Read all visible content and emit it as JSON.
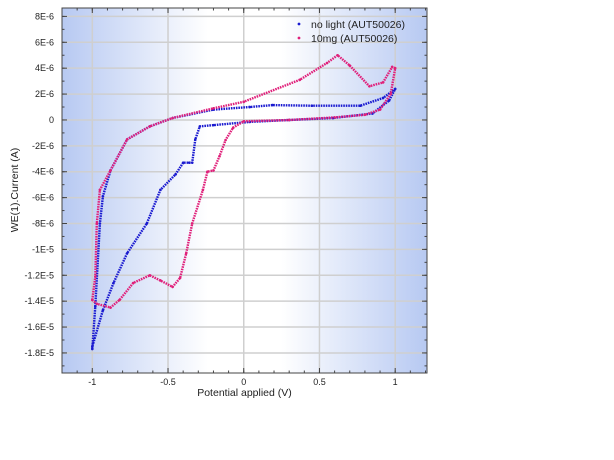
{
  "chart_data": {
    "type": "scatter",
    "title": "",
    "xlabel": "Potential applied (V)",
    "ylabel": "WE(1).Current (A)",
    "xlim": [
      -1.2,
      1.21
    ],
    "ylim": [
      -1.955e-05,
      8.65e-06
    ],
    "xticks": [
      -1,
      -0.5,
      0,
      0.5,
      1
    ],
    "xtick_labels": [
      "-1",
      "-0.5",
      "0",
      "0.5",
      "1"
    ],
    "yticks": [
      8e-06,
      6e-06,
      4e-06,
      2e-06,
      0,
      -2e-06,
      -4e-06,
      -6e-06,
      -8e-06,
      -1e-05,
      -1.2e-05,
      -1.4e-05,
      -1.6e-05,
      -1.8e-05
    ],
    "ytick_labels": [
      "8E-6",
      "6E-6",
      "4E-6",
      "2E-6",
      "0",
      "-2E-6",
      "-4E-6",
      "-6E-6",
      "-8E-6",
      "-1E-5",
      "-1.2E-5",
      "-1.4E-5",
      "-1.6E-5",
      "-1.8E-5"
    ],
    "grid": true,
    "legend_position": "top-right",
    "background": "blue-white horizontal gradient",
    "series": [
      {
        "name": "no light (AUT50026)",
        "color": "#1a1ad0",
        "x": [
          -1.0,
          -0.98,
          -0.95,
          -0.93,
          -0.88,
          -0.77,
          -0.62,
          -0.47,
          -0.2,
          0.04,
          0.19,
          0.45,
          0.77,
          0.92,
          1.0,
          0.96,
          0.85,
          0.59,
          0.3,
          0.04,
          -0.2,
          -0.29,
          -0.32,
          -0.34,
          -0.36,
          -0.4,
          -0.45,
          -0.55,
          -0.64,
          -0.77,
          -0.86,
          -0.93,
          -1.0
        ],
        "y": [
          -1.77e-05,
          -1.44e-05,
          -8e-06,
          -5.9e-06,
          -3.9e-06,
          -1.5e-06,
          -5e-07,
          1.5e-07,
          8e-07,
          1e-06,
          1.15e-06,
          1.1e-06,
          1.1e-06,
          1.7e-06,
          2.4e-06,
          1.5e-06,
          5e-07,
          1.5e-07,
          0,
          -1.5e-07,
          -4e-07,
          -5e-07,
          -1.5e-06,
          -3.3e-06,
          -3.3e-06,
          -3.3e-06,
          -4.2e-06,
          -5.4e-06,
          -8e-06,
          -1.03e-05,
          -1.26e-05,
          -1.47e-05,
          -1.75e-05
        ]
      },
      {
        "name": "10mg (AUT50026)",
        "color": "#e0207a",
        "x": [
          -1.0,
          -0.98,
          -0.97,
          -0.95,
          -0.88,
          -0.77,
          -0.62,
          -0.47,
          -0.2,
          0.0,
          0.37,
          0.55,
          0.62,
          0.7,
          0.83,
          0.92,
          0.98,
          1.0,
          0.97,
          0.9,
          0.8,
          0.6,
          0.3,
          0.0,
          -0.07,
          -0.12,
          -0.16,
          -0.2,
          -0.24,
          -0.27,
          -0.34,
          -0.38,
          -0.42,
          -0.47,
          -0.55,
          -0.62,
          -0.73,
          -0.82,
          -0.88,
          -0.97,
          -1.0
        ],
        "y": [
          -1.39e-05,
          -1.21e-05,
          -8e-06,
          -5.4e-06,
          -3.9e-06,
          -1.5e-06,
          -5e-07,
          1.5e-07,
          9e-07,
          1.4e-06,
          3.1e-06,
          4.4e-06,
          5e-06,
          4.2e-06,
          2.6e-06,
          2.9e-06,
          4.1e-06,
          4e-06,
          2e-06,
          8e-07,
          4e-07,
          2e-07,
          0,
          -1e-07,
          -6e-07,
          -1.55e-06,
          -2.8e-06,
          -3.9e-06,
          -4e-06,
          -5.4e-06,
          -8e-06,
          -1.03e-05,
          -1.22e-05,
          -1.29e-05,
          -1.24e-05,
          -1.2e-05,
          -1.26e-05,
          -1.39e-05,
          -1.45e-05,
          -1.42e-05,
          -1.39e-05
        ]
      }
    ]
  }
}
